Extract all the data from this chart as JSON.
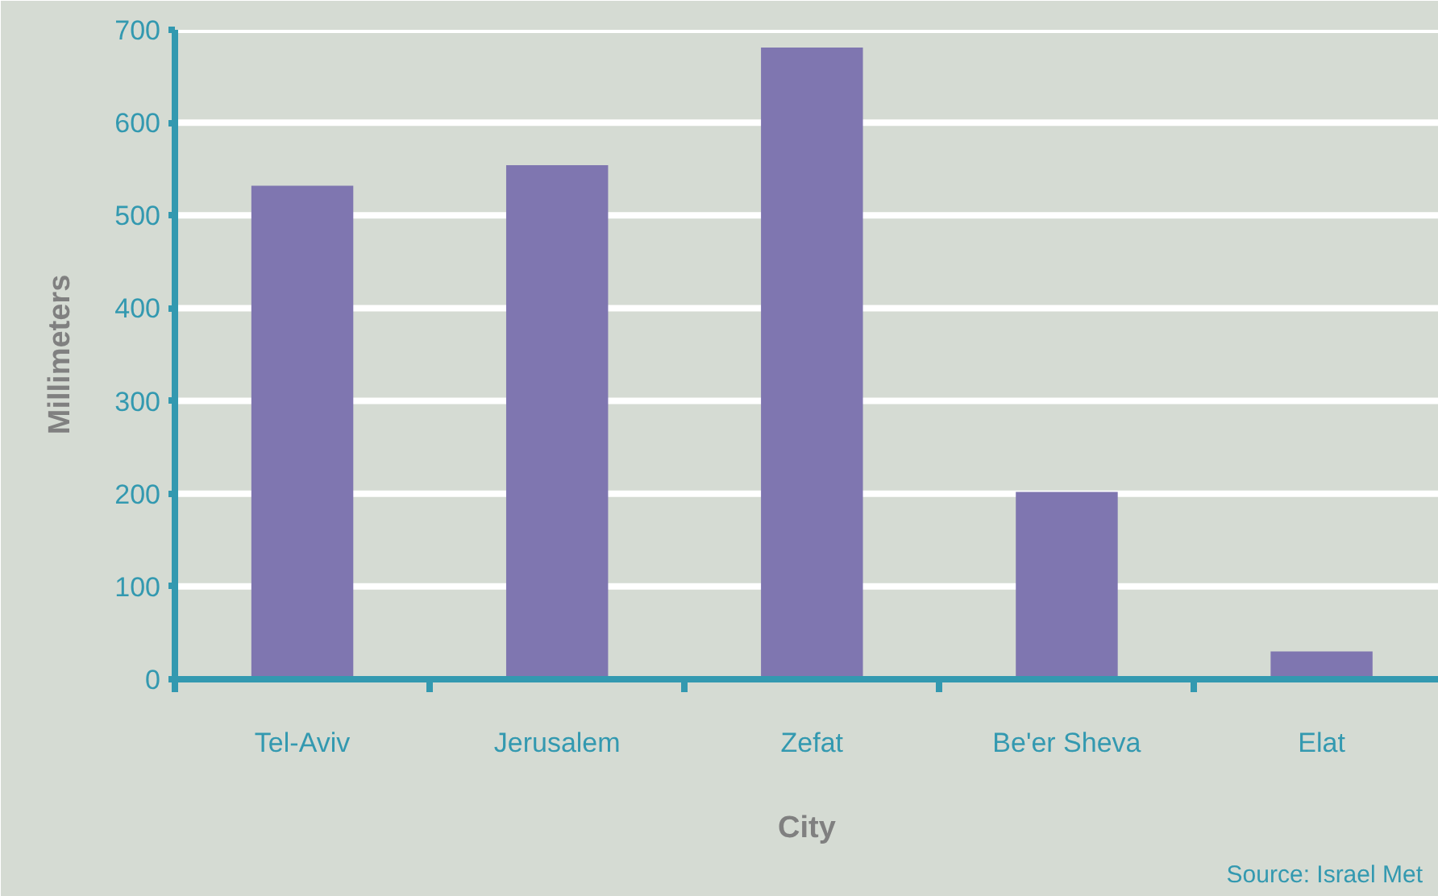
{
  "chart_data": {
    "type": "bar",
    "xlabel": "City",
    "ylabel": "Millimeters",
    "categories": [
      "Tel-Aviv",
      "Jerusalem",
      "Zefat",
      "Be'er Sheva",
      "Elat"
    ],
    "values": [
      532,
      554,
      681,
      202,
      30
    ],
    "color": "#7f76b0",
    "ylim": [
      0,
      700
    ],
    "yticks": [
      0,
      100,
      200,
      300,
      400,
      500,
      600,
      700
    ],
    "grid": "y",
    "annotations": [
      "Source: Israel Met"
    ]
  }
}
